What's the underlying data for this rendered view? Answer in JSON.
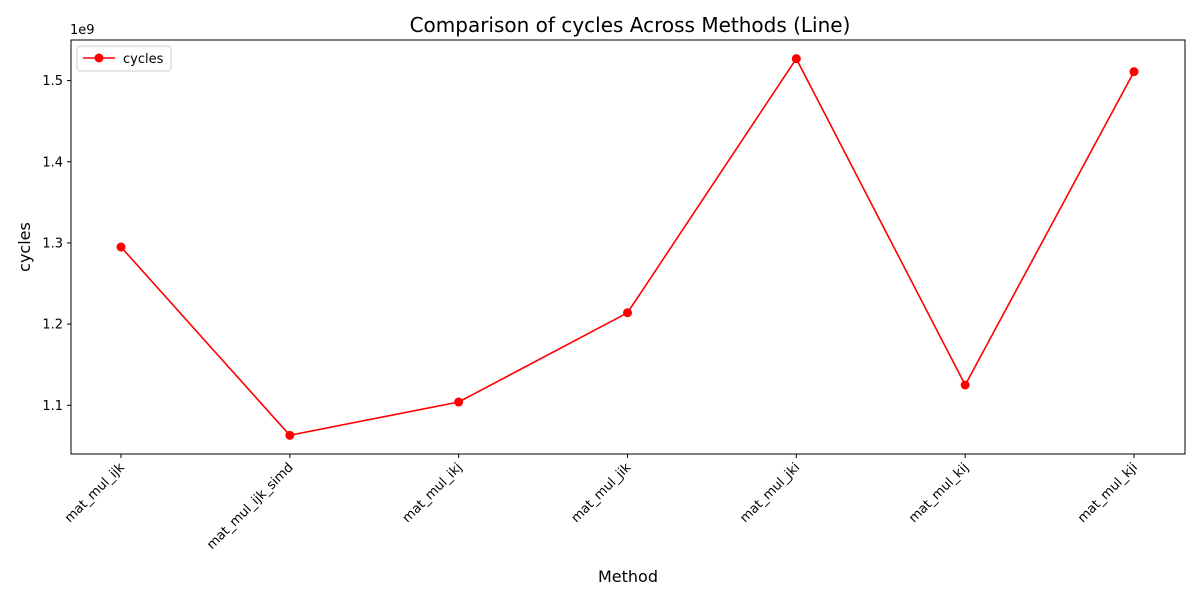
{
  "chart_data": {
    "type": "line",
    "title": "Comparison of cycles Across Methods (Line)",
    "xlabel": "Method",
    "ylabel": "cycles",
    "offset_label": "1e9",
    "categories": [
      "mat_mul_ijk",
      "mat_mul_ijk_simd",
      "mat_mul_ikj",
      "mat_mul_jik",
      "mat_mul_jki",
      "mat_mul_kij",
      "mat_mul_kji"
    ],
    "series": [
      {
        "name": "cycles",
        "color": "#ff0000",
        "marker": "circle",
        "values": [
          1295000000,
          1063000000,
          1104000000,
          1214000000,
          1527000000,
          1125000000,
          1511000000
        ]
      }
    ],
    "ylim": [
      1040000000,
      1550000000
    ],
    "yticks": [
      1100000000,
      1200000000,
      1300000000,
      1400000000,
      1500000000
    ],
    "ytick_labels": [
      "1.1",
      "1.2",
      "1.3",
      "1.4",
      "1.5"
    ],
    "grid": false,
    "legend_position": "top-left"
  }
}
